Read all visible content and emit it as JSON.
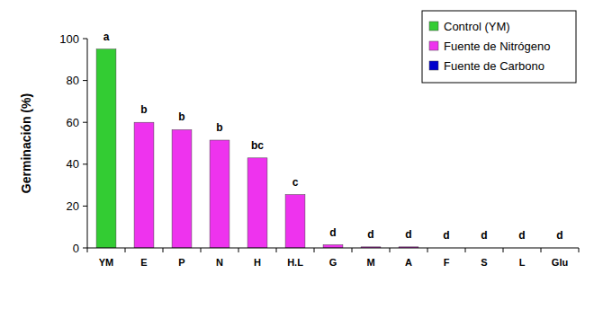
{
  "chart_data": {
    "type": "bar",
    "y_label": "Germinación (%)",
    "categories": [
      "YM",
      "E",
      "P",
      "N",
      "H",
      "H.L",
      "G",
      "M",
      "A",
      "F",
      "S",
      "L",
      "Glu"
    ],
    "series": [
      {
        "name": "Control (YM)",
        "color": "#33cc33",
        "values": [
          95,
          null,
          null,
          null,
          null,
          null,
          null,
          null,
          null,
          null,
          null,
          null,
          null
        ]
      },
      {
        "name": "Fuente de Nitrógeno",
        "color": "#ee33ee",
        "values": [
          null,
          60,
          56.5,
          51.5,
          43,
          25.5,
          1.5,
          0.5,
          0.5,
          null,
          null,
          null,
          null
        ]
      },
      {
        "name": "Fuente de Carbono",
        "color": "#0000cc",
        "values": [
          null,
          null,
          null,
          null,
          null,
          null,
          null,
          null,
          null,
          0,
          0,
          0,
          0
        ]
      }
    ],
    "annotations": [
      "a",
      "b",
      "b",
      "b",
      "bc",
      "c",
      "d",
      "d",
      "d",
      "d",
      "d",
      "d",
      "d"
    ],
    "ylim": [
      0,
      100
    ],
    "yticks": [
      0,
      20,
      40,
      60,
      80,
      100
    ],
    "grid": false,
    "legend": "top-right"
  }
}
